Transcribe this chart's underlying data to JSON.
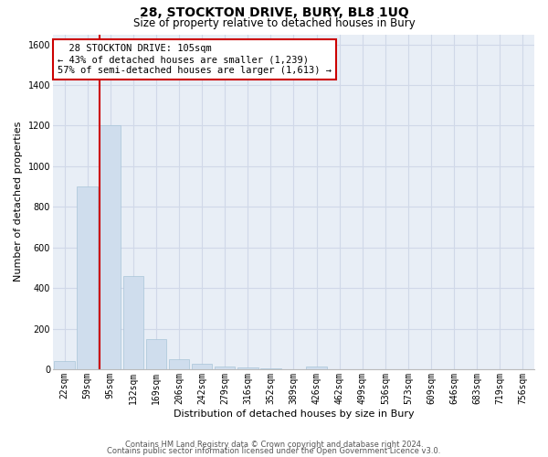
{
  "title": "28, STOCKTON DRIVE, BURY, BL8 1UQ",
  "subtitle": "Size of property relative to detached houses in Bury",
  "xlabel": "Distribution of detached houses by size in Bury",
  "ylabel": "Number of detached properties",
  "footer1": "Contains HM Land Registry data © Crown copyright and database right 2024.",
  "footer2": "Contains public sector information licensed under the Open Government Licence v3.0.",
  "bins": [
    "22sqm",
    "59sqm",
    "95sqm",
    "132sqm",
    "169sqm",
    "206sqm",
    "242sqm",
    "279sqm",
    "316sqm",
    "352sqm",
    "389sqm",
    "426sqm",
    "462sqm",
    "499sqm",
    "536sqm",
    "573sqm",
    "609sqm",
    "646sqm",
    "683sqm",
    "719sqm",
    "756sqm"
  ],
  "values": [
    40,
    900,
    1200,
    460,
    150,
    50,
    25,
    15,
    10,
    5,
    0,
    15,
    0,
    0,
    0,
    0,
    0,
    0,
    0,
    0,
    0
  ],
  "bar_color": "#cfdded",
  "bar_edge_color": "#a8c4d8",
  "grid_color": "#d0d8e8",
  "background_color": "#e8eef6",
  "property_label": "28 STOCKTON DRIVE: 105sqm",
  "pct_smaller": 43,
  "pct_smaller_count": 1239,
  "pct_larger": 57,
  "pct_larger_count": 1613,
  "vline_color": "#cc0000",
  "annotation_box_color": "#ffffff",
  "annotation_box_edge": "#cc0000",
  "ylim": [
    0,
    1650
  ],
  "yticks": [
    0,
    200,
    400,
    600,
    800,
    1000,
    1200,
    1400,
    1600
  ],
  "vline_x_index": 2,
  "fig_width": 6.0,
  "fig_height": 5.0,
  "title_fontsize": 10,
  "subtitle_fontsize": 8.5,
  "axis_label_fontsize": 8,
  "tick_fontsize": 7,
  "footer_fontsize": 6,
  "ann_fontsize": 7.5
}
